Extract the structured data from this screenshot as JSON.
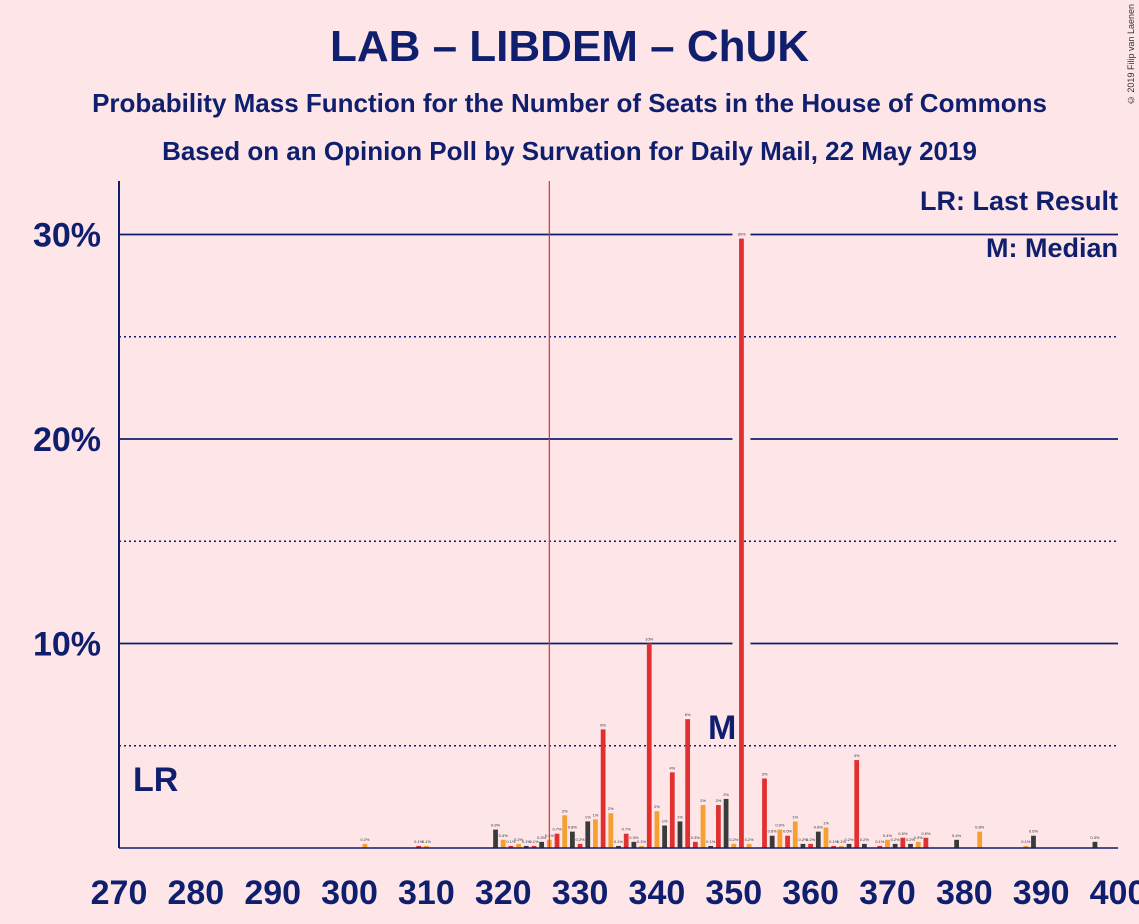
{
  "title": "LAB – LIBDEM – ChUK",
  "subtitle1": "Probability Mass Function for the Number of Seats in the House of Commons",
  "subtitle2": "Based on an Opinion Poll by Survation for Daily Mail, 22 May 2019",
  "copyright": "© 2019 Filip van Laenen",
  "legend": {
    "lr": "LR: Last Result",
    "m": "M: Median"
  },
  "markers": {
    "lr": "LR",
    "m": "M"
  },
  "colors": {
    "background": "#fde5e8",
    "median_bar": "#e03030",
    "alt_bar": "#f5a030",
    "dark_bar": "#3a3a3a",
    "axis": "#0f1f6e",
    "lr_line": "#e03030"
  },
  "chart_data": {
    "type": "bar",
    "x_ticks": [
      270,
      280,
      290,
      300,
      310,
      320,
      330,
      340,
      350,
      360,
      370,
      380,
      390,
      400
    ],
    "y_ticks": [
      "10%",
      "20%",
      "30%"
    ],
    "y_tick_values": [
      10,
      20,
      30
    ],
    "xlim": [
      270,
      400
    ],
    "ylim": [
      0,
      32.5
    ],
    "last_result": 326,
    "median": 351,
    "bars": [
      {
        "x": 302,
        "v": 0.2
      },
      {
        "x": 309,
        "v": 0.1
      },
      {
        "x": 310,
        "v": 0.1
      },
      {
        "x": 319,
        "v": 0.9
      },
      {
        "x": 320,
        "v": 0.4
      },
      {
        "x": 321,
        "v": 0.1
      },
      {
        "x": 322,
        "v": 0.2
      },
      {
        "x": 323,
        "v": 0.1
      },
      {
        "x": 324,
        "v": 0.1
      },
      {
        "x": 325,
        "v": 0.3
      },
      {
        "x": 326,
        "v": 0.4
      },
      {
        "x": 327,
        "v": 0.7
      },
      {
        "x": 328,
        "v": 1.6
      },
      {
        "x": 329,
        "v": 0.8
      },
      {
        "x": 330,
        "v": 0.2
      },
      {
        "x": 331,
        "v": 1.3
      },
      {
        "x": 332,
        "v": 1.4
      },
      {
        "x": 333,
        "v": 5.8
      },
      {
        "x": 334,
        "v": 1.7
      },
      {
        "x": 335,
        "v": 0.1
      },
      {
        "x": 336,
        "v": 0.7
      },
      {
        "x": 337,
        "v": 0.3
      },
      {
        "x": 338,
        "v": 0.1
      },
      {
        "x": 339,
        "v": 10.0
      },
      {
        "x": 340,
        "v": 1.8
      },
      {
        "x": 341,
        "v": 1.1
      },
      {
        "x": 342,
        "v": 3.7
      },
      {
        "x": 343,
        "v": 1.3
      },
      {
        "x": 344,
        "v": 6.3
      },
      {
        "x": 345,
        "v": 0.3
      },
      {
        "x": 346,
        "v": 2.1
      },
      {
        "x": 347,
        "v": 0.1
      },
      {
        "x": 348,
        "v": 2.1
      },
      {
        "x": 349,
        "v": 2.4
      },
      {
        "x": 350,
        "v": 0.2
      },
      {
        "x": 351,
        "v": 29.8
      },
      {
        "x": 352,
        "v": 0.2
      },
      {
        "x": 354,
        "v": 3.4
      },
      {
        "x": 355,
        "v": 0.6
      },
      {
        "x": 356,
        "v": 0.9
      },
      {
        "x": 357,
        "v": 0.6
      },
      {
        "x": 358,
        "v": 1.3
      },
      {
        "x": 359,
        "v": 0.2
      },
      {
        "x": 360,
        "v": 0.2
      },
      {
        "x": 361,
        "v": 0.8
      },
      {
        "x": 362,
        "v": 1.0
      },
      {
        "x": 363,
        "v": 0.1
      },
      {
        "x": 364,
        "v": 0.1
      },
      {
        "x": 365,
        "v": 0.2
      },
      {
        "x": 366,
        "v": 4.3
      },
      {
        "x": 367,
        "v": 0.2
      },
      {
        "x": 369,
        "v": 0.1
      },
      {
        "x": 370,
        "v": 0.4
      },
      {
        "x": 371,
        "v": 0.2
      },
      {
        "x": 372,
        "v": 0.5
      },
      {
        "x": 373,
        "v": 0.2
      },
      {
        "x": 374,
        "v": 0.3
      },
      {
        "x": 375,
        "v": 0.5
      },
      {
        "x": 379,
        "v": 0.4
      },
      {
        "x": 382,
        "v": 0.8
      },
      {
        "x": 388,
        "v": 0.1
      },
      {
        "x": 389,
        "v": 0.6
      },
      {
        "x": 397,
        "v": 0.3
      }
    ]
  }
}
